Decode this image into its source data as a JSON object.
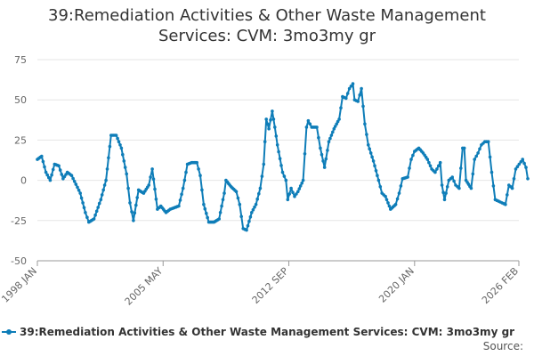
{
  "colors": {
    "series": "#0e7db8",
    "grid": "#e6e6e6",
    "axis": "#999999",
    "text": "#666666"
  },
  "source_label": "Source:",
  "chart_data": {
    "type": "line",
    "title_lines": [
      "39:Remediation Activities & Other Waste Management",
      "Services: CVM: 3mo3my gr"
    ],
    "xlabel": "",
    "ylabel": "",
    "ylim": [
      -50,
      75
    ],
    "yticks": [
      -50,
      -25,
      0,
      25,
      50,
      75
    ],
    "x_start": 1998.0,
    "x_end": 2026.083,
    "xticks": [
      {
        "label": "1998 JAN",
        "x": 1998.0
      },
      {
        "label": "2005 MAY",
        "x": 2005.333
      },
      {
        "label": "2012 SEP",
        "x": 2012.667
      },
      {
        "label": "2020 JAN",
        "x": 2020.0
      },
      {
        "label": "2026 FEB",
        "x": 2026.083
      }
    ],
    "legend_position": "bottom",
    "series": [
      {
        "name": "39:Remediation Activities & Other Waste Management Services: CVM: 3mo3my gr",
        "points": [
          [
            1998.0,
            13
          ],
          [
            1998.25,
            15
          ],
          [
            1998.5,
            5
          ],
          [
            1998.75,
            0
          ],
          [
            1999.0,
            10
          ],
          [
            1999.25,
            9
          ],
          [
            1999.5,
            1
          ],
          [
            1999.75,
            5
          ],
          [
            2000.0,
            3
          ],
          [
            2000.5,
            -8
          ],
          [
            2000.8,
            -20
          ],
          [
            2001.0,
            -26
          ],
          [
            2001.3,
            -24
          ],
          [
            2001.7,
            -12
          ],
          [
            2002.0,
            0
          ],
          [
            2002.3,
            28
          ],
          [
            2002.6,
            28
          ],
          [
            2002.9,
            20
          ],
          [
            2003.2,
            4
          ],
          [
            2003.4,
            -14
          ],
          [
            2003.6,
            -25
          ],
          [
            2003.9,
            -6
          ],
          [
            2004.2,
            -8
          ],
          [
            2004.5,
            -3
          ],
          [
            2004.7,
            7
          ],
          [
            2005.0,
            -18
          ],
          [
            2005.2,
            -16
          ],
          [
            2005.5,
            -20
          ],
          [
            2005.75,
            -18
          ],
          [
            2006.0,
            -17
          ],
          [
            2006.25,
            -16
          ],
          [
            2006.5,
            -5
          ],
          [
            2006.75,
            10
          ],
          [
            2007.0,
            11
          ],
          [
            2007.3,
            11
          ],
          [
            2007.5,
            3
          ],
          [
            2007.7,
            -15
          ],
          [
            2008.0,
            -26
          ],
          [
            2008.3,
            -26
          ],
          [
            2008.6,
            -24
          ],
          [
            2008.9,
            -8
          ],
          [
            2009.0,
            0
          ],
          [
            2009.3,
            -4
          ],
          [
            2009.6,
            -7
          ],
          [
            2009.8,
            -15
          ],
          [
            2010.0,
            -30
          ],
          [
            2010.2,
            -31
          ],
          [
            2010.5,
            -20
          ],
          [
            2010.75,
            -15
          ],
          [
            2011.0,
            -5
          ],
          [
            2011.2,
            10
          ],
          [
            2011.35,
            38
          ],
          [
            2011.5,
            32
          ],
          [
            2011.7,
            43
          ],
          [
            2011.85,
            33
          ],
          [
            2012.0,
            22
          ],
          [
            2012.3,
            5
          ],
          [
            2012.5,
            0
          ],
          [
            2012.6,
            -12
          ],
          [
            2012.8,
            -5
          ],
          [
            2013.0,
            -10
          ],
          [
            2013.2,
            -7
          ],
          [
            2013.5,
            0
          ],
          [
            2013.7,
            33
          ],
          [
            2013.8,
            37
          ],
          [
            2014.0,
            33
          ],
          [
            2014.3,
            33
          ],
          [
            2014.5,
            20
          ],
          [
            2014.75,
            8
          ],
          [
            2015.0,
            24
          ],
          [
            2015.3,
            32
          ],
          [
            2015.6,
            38
          ],
          [
            2015.8,
            52
          ],
          [
            2016.0,
            51
          ],
          [
            2016.2,
            57
          ],
          [
            2016.4,
            60
          ],
          [
            2016.5,
            50
          ],
          [
            2016.7,
            49
          ],
          [
            2016.9,
            57
          ],
          [
            2017.1,
            35
          ],
          [
            2017.3,
            22
          ],
          [
            2017.6,
            12
          ],
          [
            2017.9,
            0
          ],
          [
            2018.1,
            -8
          ],
          [
            2018.3,
            -10
          ],
          [
            2018.6,
            -18
          ],
          [
            2018.9,
            -15
          ],
          [
            2019.1,
            -8
          ],
          [
            2019.3,
            1
          ],
          [
            2019.6,
            2
          ],
          [
            2019.8,
            13
          ],
          [
            2020.0,
            18
          ],
          [
            2020.25,
            20
          ],
          [
            2020.5,
            17
          ],
          [
            2020.75,
            13
          ],
          [
            2021.0,
            7
          ],
          [
            2021.2,
            5
          ],
          [
            2021.4,
            9
          ],
          [
            2021.5,
            11
          ],
          [
            2021.6,
            -3
          ],
          [
            2021.75,
            -12
          ],
          [
            2022.0,
            0
          ],
          [
            2022.2,
            2
          ],
          [
            2022.4,
            -3
          ],
          [
            2022.6,
            -5
          ],
          [
            2022.8,
            20
          ],
          [
            2022.9,
            20
          ],
          [
            2023.0,
            0
          ],
          [
            2023.3,
            -5
          ],
          [
            2023.5,
            13
          ],
          [
            2023.7,
            17
          ],
          [
            2023.9,
            22
          ],
          [
            2024.1,
            24
          ],
          [
            2024.3,
            24
          ],
          [
            2024.5,
            5
          ],
          [
            2024.7,
            -12
          ],
          [
            2024.9,
            -13
          ],
          [
            2025.1,
            -14
          ],
          [
            2025.3,
            -15
          ],
          [
            2025.5,
            -3
          ],
          [
            2025.7,
            -5
          ],
          [
            2025.9,
            7
          ],
          [
            2026.1,
            10
          ],
          [
            2026.3,
            13
          ],
          [
            2026.5,
            8
          ],
          [
            2026.6,
            1
          ]
        ]
      }
    ]
  }
}
